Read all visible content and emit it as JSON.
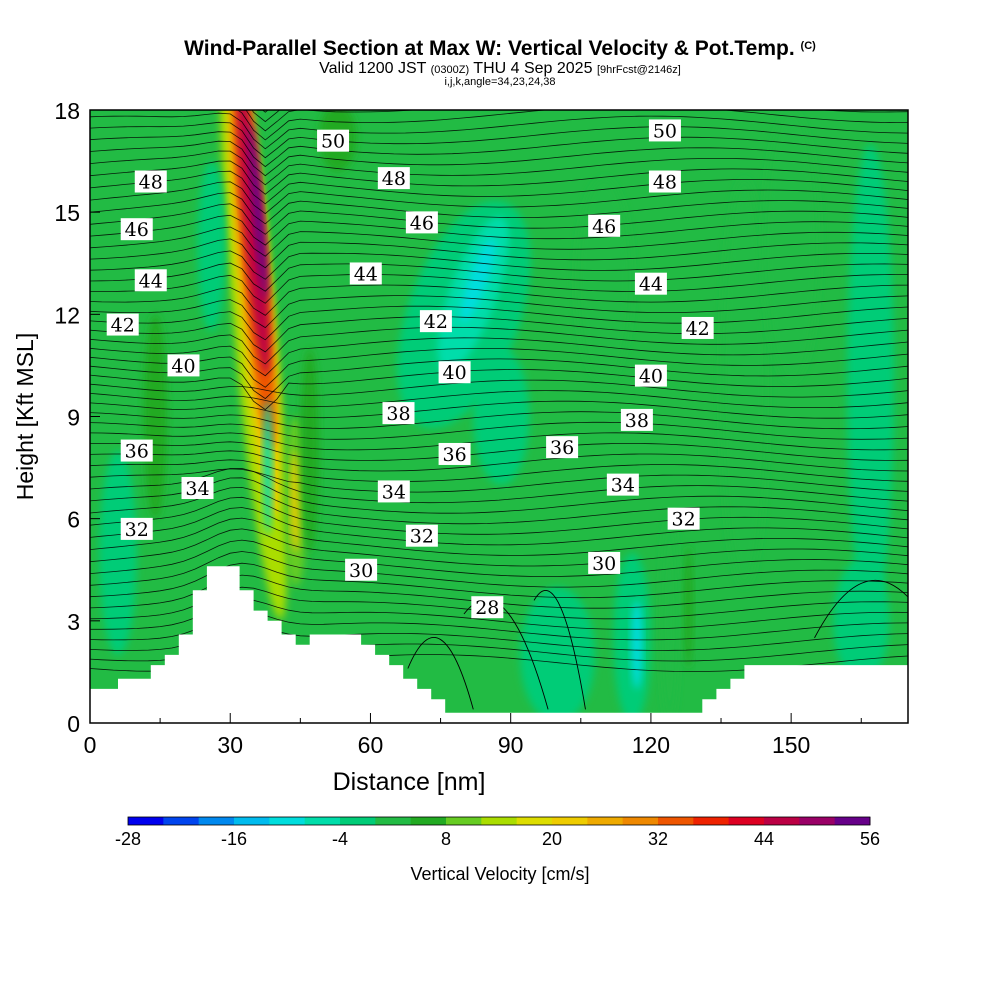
{
  "title_main": "Wind-Parallel Section at Max W: Vertical Velocity & Pot.Temp.",
  "title_mark": "(C)",
  "subtitle_valid": "Valid 1200 JST",
  "subtitle_utc": "(0300Z)",
  "subtitle_date": "THU 4 Sep 2025",
  "subtitle_fcst": "[9hrFcst@2146z]",
  "subtitle_grid": "i,j,k,angle=34,23,24,38",
  "chart_data": {
    "type": "heatmap",
    "title": "Wind-Parallel Section at Max W: Vertical Velocity & Pot.Temp.",
    "xlabel": "Distance [nm]",
    "ylabel": "Height [Kft MSL]",
    "xlim": [
      0,
      175
    ],
    "ylim": [
      0,
      18
    ],
    "x_ticks": [
      "0",
      "30",
      "60",
      "90",
      "120",
      "150"
    ],
    "x_tick_values": [
      0,
      30,
      60,
      90,
      120,
      150
    ],
    "y_ticks": [
      "0",
      "3",
      "6",
      "9",
      "12",
      "15",
      "18"
    ],
    "y_tick_values": [
      0,
      3,
      6,
      9,
      12,
      15,
      18
    ],
    "colorbar": {
      "label": "Vertical Velocity [cm/s]",
      "min": -28,
      "max": 56,
      "step": 4,
      "tick_labels": [
        "-28",
        "-16",
        "-4",
        "8",
        "20",
        "32",
        "44",
        "56"
      ],
      "tick_values": [
        -28,
        -16,
        -4,
        8,
        20,
        32,
        44,
        56
      ],
      "colors": [
        "#0000ee",
        "#0044ee",
        "#0088ee",
        "#00bbee",
        "#00dddd",
        "#00ddaa",
        "#00cc77",
        "#22bb44",
        "#22aa22",
        "#66cc22",
        "#aadd00",
        "#dddd00",
        "#eecc00",
        "#eeaa00",
        "#ee8800",
        "#ee5500",
        "#ee2200",
        "#dd0022",
        "#bb0044",
        "#990066",
        "#660088"
      ]
    },
    "theta_contour_labels": [
      {
        "value": "50",
        "x": 52,
        "y": 17.1
      },
      {
        "value": "50",
        "x": 123,
        "y": 17.4
      },
      {
        "value": "48",
        "x": 13,
        "y": 15.9
      },
      {
        "value": "48",
        "x": 65,
        "y": 16.0
      },
      {
        "value": "48",
        "x": 123,
        "y": 15.9
      },
      {
        "value": "46",
        "x": 10,
        "y": 14.5
      },
      {
        "value": "46",
        "x": 71,
        "y": 14.7
      },
      {
        "value": "46",
        "x": 110,
        "y": 14.6
      },
      {
        "value": "44",
        "x": 13,
        "y": 13.0
      },
      {
        "value": "44",
        "x": 59,
        "y": 13.2
      },
      {
        "value": "44",
        "x": 120,
        "y": 12.9
      },
      {
        "value": "42",
        "x": 7,
        "y": 11.7
      },
      {
        "value": "42",
        "x": 74,
        "y": 11.8
      },
      {
        "value": "42",
        "x": 130,
        "y": 11.6
      },
      {
        "value": "40",
        "x": 20,
        "y": 10.5
      },
      {
        "value": "40",
        "x": 78,
        "y": 10.3
      },
      {
        "value": "40",
        "x": 120,
        "y": 10.2
      },
      {
        "value": "38",
        "x": 66,
        "y": 9.1
      },
      {
        "value": "38",
        "x": 117,
        "y": 8.9
      },
      {
        "value": "36",
        "x": 10,
        "y": 8.0
      },
      {
        "value": "36",
        "x": 78,
        "y": 7.9
      },
      {
        "value": "36",
        "x": 101,
        "y": 8.1
      },
      {
        "value": "34",
        "x": 23,
        "y": 6.9
      },
      {
        "value": "34",
        "x": 65,
        "y": 6.8
      },
      {
        "value": "34",
        "x": 114,
        "y": 7.0
      },
      {
        "value": "32",
        "x": 10,
        "y": 5.7
      },
      {
        "value": "32",
        "x": 71,
        "y": 5.5
      },
      {
        "value": "32",
        "x": 127,
        "y": 6.0
      },
      {
        "value": "30",
        "x": 58,
        "y": 4.5
      },
      {
        "value": "30",
        "x": 110,
        "y": 4.7
      },
      {
        "value": "28",
        "x": 85,
        "y": 3.4
      }
    ],
    "terrain_profile_kft": {
      "x": [
        0,
        6,
        6,
        13,
        13,
        16,
        16,
        19,
        19,
        22,
        22,
        25,
        25,
        29,
        29,
        32,
        32,
        35,
        35,
        38,
        38,
        41,
        41,
        44,
        44,
        47,
        47,
        51,
        51,
        58,
        58,
        61,
        61,
        64,
        64,
        67,
        67,
        70,
        70,
        73,
        73,
        76,
        76,
        131,
        131,
        134,
        134,
        137,
        137,
        140,
        140,
        145,
        145,
        175
      ],
      "y": [
        1.0,
        1.0,
        1.3,
        1.3,
        1.7,
        1.7,
        2.0,
        2.0,
        2.6,
        2.6,
        3.9,
        3.9,
        4.6,
        4.6,
        4.6,
        4.6,
        3.9,
        3.9,
        3.3,
        3.3,
        3.0,
        3.0,
        2.6,
        2.6,
        2.3,
        2.3,
        2.6,
        2.6,
        2.6,
        2.6,
        2.3,
        2.3,
        2.0,
        2.0,
        1.7,
        1.7,
        1.3,
        1.3,
        1.0,
        1.0,
        0.7,
        0.7,
        0.3,
        0.3,
        0.7,
        0.7,
        1.0,
        1.0,
        1.3,
        1.3,
        1.7,
        1.7,
        1.7,
        1.7
      ]
    },
    "w_features": [
      {
        "shape": "ellipse",
        "cx": 35,
        "cy": 12.0,
        "rx": 4.5,
        "ry": 9.0,
        "rot": -5,
        "w": 12
      },
      {
        "shape": "ellipse",
        "cx": 35,
        "cy": 13.0,
        "rx": 3.5,
        "ry": 7.0,
        "rot": -5,
        "w": 20
      },
      {
        "shape": "ellipse",
        "cx": 35,
        "cy": 13.8,
        "rx": 2.7,
        "ry": 5.8,
        "rot": -5,
        "w": 32
      },
      {
        "shape": "ellipse",
        "cx": 35,
        "cy": 14.5,
        "rx": 2.0,
        "ry": 4.3,
        "rot": -5,
        "w": 44
      },
      {
        "shape": "ellipse",
        "cx": 36,
        "cy": 15.0,
        "rx": 1.0,
        "ry": 2.6,
        "rot": -5,
        "w": 56
      },
      {
        "shape": "ellipse",
        "cx": 44,
        "cy": 6.5,
        "rx": 2.5,
        "ry": 2.5,
        "rot": 0,
        "w": 8
      },
      {
        "shape": "ellipse",
        "cx": 44,
        "cy": 6.5,
        "rx": 1.0,
        "ry": 1.5,
        "rot": 0,
        "w": 20
      },
      {
        "shape": "ellipse",
        "cx": 14,
        "cy": 9.0,
        "rx": 2.5,
        "ry": 3.0,
        "rot": 0,
        "w": 4
      },
      {
        "shape": "ellipse",
        "cx": 53,
        "cy": 17.2,
        "rx": 4.0,
        "ry": 1.0,
        "rot": 0,
        "w": 4
      },
      {
        "shape": "ellipse",
        "cx": 80,
        "cy": 12.0,
        "rx": 12.0,
        "ry": 3.5,
        "rot": 20,
        "w": -4
      },
      {
        "shape": "ellipse",
        "cx": 82,
        "cy": 12.6,
        "rx": 5.0,
        "ry": 2.4,
        "rot": 20,
        "w": -8
      },
      {
        "shape": "ellipse",
        "cx": 83,
        "cy": 13.0,
        "rx": 2.0,
        "ry": 1.3,
        "rot": 20,
        "w": -12
      },
      {
        "shape": "ellipse",
        "cx": 100,
        "cy": 2.0,
        "rx": 8.0,
        "ry": 2.0,
        "rot": 0,
        "w": -4
      },
      {
        "shape": "ellipse",
        "cx": 116,
        "cy": 2.5,
        "rx": 4.0,
        "ry": 2.5,
        "rot": 0,
        "w": -4
      },
      {
        "shape": "ellipse",
        "cx": 117,
        "cy": 2.3,
        "rx": 1.2,
        "ry": 1.3,
        "rot": 0,
        "w": -12
      },
      {
        "shape": "ellipse",
        "cx": 88,
        "cy": 9.0,
        "rx": 6.0,
        "ry": 2.0,
        "rot": 0,
        "w": -4
      },
      {
        "shape": "ellipse",
        "cx": 6,
        "cy": 5.0,
        "rx": 4.0,
        "ry": 3.0,
        "rot": 0,
        "w": -4
      },
      {
        "shape": "ellipse",
        "cx": 128,
        "cy": 3.4,
        "rx": 1.0,
        "ry": 1.8,
        "rot": 0,
        "w": 4
      },
      {
        "shape": "ellipse",
        "cx": 124,
        "cy": 3.0,
        "rx": 2.0,
        "ry": 3.0,
        "rot": 0,
        "w": 0
      },
      {
        "shape": "ellipse",
        "cx": 165,
        "cy": 3.0,
        "rx": 6.0,
        "ry": 1.8,
        "rot": 0,
        "w": -4
      },
      {
        "shape": "ellipse",
        "cx": 167,
        "cy": 10.0,
        "rx": 5.0,
        "ry": 7.0,
        "rot": 0,
        "w": -4
      },
      {
        "shape": "ellipse",
        "cx": 140,
        "cy": 10.0,
        "rx": 5.0,
        "ry": 6.0,
        "rot": 0,
        "w": 0
      },
      {
        "shape": "ellipse",
        "cx": 150,
        "cy": 14.0,
        "rx": 6.0,
        "ry": 4.0,
        "rot": 0,
        "w": 0
      },
      {
        "shape": "ellipse",
        "cx": 110,
        "cy": 13.0,
        "rx": 6.0,
        "ry": 3.0,
        "rot": 0,
        "w": 0
      },
      {
        "shape": "ellipse",
        "cx": 26,
        "cy": 14.0,
        "rx": 3.0,
        "ry": 2.5,
        "rot": 0,
        "w": -4
      },
      {
        "shape": "ellipse",
        "cx": 38,
        "cy": 7.5,
        "rx": 1.0,
        "ry": 2.0,
        "rot": 0,
        "w": -8
      },
      {
        "shape": "ellipse",
        "cx": 47,
        "cy": 8.0,
        "rx": 2.0,
        "ry": 3.0,
        "rot": 0,
        "w": 4
      }
    ],
    "w_neg_contours": [
      {
        "kind": "arc",
        "x0": 68,
        "y0": 1.6,
        "x1": 82,
        "y1": 0.4,
        "peak": 2.7
      },
      {
        "kind": "arc",
        "x0": 80,
        "y0": 3.2,
        "x1": 98,
        "y1": 0.4,
        "peak": 3.6
      },
      {
        "kind": "arc",
        "x0": 95,
        "y0": 3.6,
        "x1": 106,
        "y1": 0.4,
        "peak": 3.7
      },
      {
        "kind": "arc",
        "x0": 155,
        "y0": 2.5,
        "x1": 175,
        "y1": 3.7,
        "peak": 3.9
      }
    ]
  }
}
